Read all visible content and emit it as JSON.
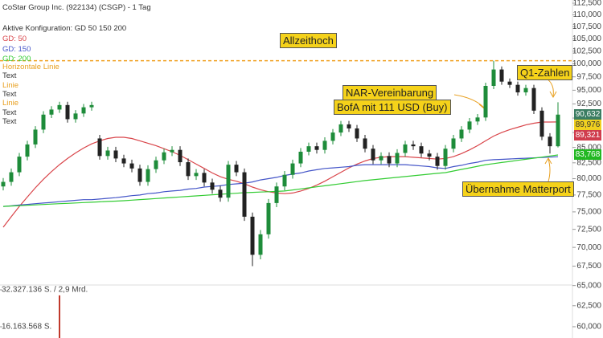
{
  "chart_data": {
    "type": "candlestick",
    "title": "CoStar Group Inc. (922134) (CSGP) - 1 Tag",
    "subtitle": "Aktive Konfiguration: GD 50 150 200",
    "log_scale": true,
    "ylim": [
      58700,
      113200
    ],
    "yticks": [
      {
        "value": 60000,
        "label": "60,000"
      },
      {
        "value": 62500,
        "label": "62,500"
      },
      {
        "value": 65000,
        "label": "65,000"
      },
      {
        "value": 67500,
        "label": "67,500"
      },
      {
        "value": 70000,
        "label": "70,000"
      },
      {
        "value": 72500,
        "label": "72,500"
      },
      {
        "value": 75000,
        "label": "75,000"
      },
      {
        "value": 77500,
        "label": "77,500"
      },
      {
        "value": 80000,
        "label": "80,000"
      },
      {
        "value": 82500,
        "label": "82,500"
      },
      {
        "value": 85000,
        "label": "85,000"
      },
      {
        "value": 87500,
        "label": "87,500"
      },
      {
        "value": 90000,
        "label": "90,000"
      },
      {
        "value": 92500,
        "label": "92,500"
      },
      {
        "value": 95000,
        "label": "95,000"
      },
      {
        "value": 97500,
        "label": "97,500"
      },
      {
        "value": 100000,
        "label": "100,000"
      },
      {
        "value": 102500,
        "label": "102,500"
      },
      {
        "value": 105000,
        "label": "105,000"
      },
      {
        "value": 107500,
        "label": "107,500"
      },
      {
        "value": 110000,
        "label": "110,000"
      },
      {
        "value": 112500,
        "label": "112,500"
      }
    ],
    "up_color": "#1e8c3a",
    "down_color": "#222222",
    "ohlc": [
      [
        78800,
        80100,
        78200,
        79500
      ],
      [
        79500,
        81600,
        78900,
        81000
      ],
      [
        81000,
        84100,
        80400,
        83500
      ],
      [
        83500,
        86100,
        82900,
        85500
      ],
      [
        85500,
        88600,
        84900,
        88000
      ],
      [
        88000,
        91200,
        87400,
        90600
      ],
      [
        90600,
        92100,
        90000,
        91500
      ],
      [
        91500,
        92900,
        90900,
        92300
      ],
      [
        92300,
        92900,
        89200,
        89800
      ],
      [
        89800,
        91400,
        89200,
        90800
      ],
      [
        90800,
        92500,
        90200,
        91900
      ],
      [
        91900,
        92900,
        91300,
        92300
      ],
      [
        86500,
        87100,
        83000,
        83600
      ],
      [
        83600,
        85100,
        83000,
        84500
      ],
      [
        84500,
        85100,
        82600,
        83200
      ],
      [
        83200,
        83800,
        81800,
        82400
      ],
      [
        82400,
        83000,
        81000,
        81600
      ],
      [
        81600,
        82200,
        78900,
        79500
      ],
      [
        79500,
        82100,
        78900,
        81500
      ],
      [
        81500,
        83500,
        80900,
        82900
      ],
      [
        82900,
        84800,
        82300,
        84200
      ],
      [
        84200,
        85200,
        83600,
        84600
      ],
      [
        84600,
        85200,
        82000,
        82600
      ],
      [
        82600,
        83200,
        79800,
        80400
      ],
      [
        80400,
        81500,
        79800,
        80900
      ],
      [
        80900,
        81500,
        78800,
        79400
      ],
      [
        79400,
        80000,
        77700,
        78300
      ],
      [
        78300,
        78900,
        76500,
        77100
      ],
      [
        77100,
        82800,
        76500,
        82200
      ],
      [
        82200,
        82800,
        80400,
        81000
      ],
      [
        81000,
        81600,
        73700,
        74300
      ],
      [
        74300,
        74900,
        67500,
        69000
      ],
      [
        69000,
        72400,
        68400,
        71800
      ],
      [
        71800,
        76900,
        71200,
        76300
      ],
      [
        76300,
        79400,
        75700,
        78800
      ],
      [
        78800,
        81200,
        78200,
        80600
      ],
      [
        80600,
        83000,
        80000,
        82400
      ],
      [
        82400,
        84900,
        81800,
        84300
      ],
      [
        84300,
        85800,
        83700,
        85200
      ],
      [
        85200,
        85800,
        84000,
        84600
      ],
      [
        84600,
        86700,
        84000,
        86100
      ],
      [
        86100,
        88100,
        85500,
        87500
      ],
      [
        87500,
        89500,
        86900,
        88900
      ],
      [
        88900,
        89500,
        87600,
        88200
      ],
      [
        88200,
        88800,
        85900,
        86500
      ],
      [
        86500,
        87100,
        84200,
        84800
      ],
      [
        84800,
        85400,
        82300,
        82900
      ],
      [
        82900,
        84200,
        82300,
        83600
      ],
      [
        83600,
        84200,
        81800,
        82400
      ],
      [
        82400,
        84700,
        81800,
        84100
      ],
      [
        84100,
        86100,
        83500,
        85500
      ],
      [
        85500,
        86100,
        84600,
        85200
      ],
      [
        85200,
        85800,
        83400,
        84000
      ],
      [
        84000,
        84600,
        82900,
        83500
      ],
      [
        83500,
        84100,
        81400,
        82000
      ],
      [
        82000,
        85400,
        81400,
        84800
      ],
      [
        84800,
        87100,
        84200,
        86500
      ],
      [
        86500,
        88600,
        85900,
        88000
      ],
      [
        88000,
        90000,
        87400,
        89400
      ],
      [
        89400,
        90700,
        88800,
        90100
      ],
      [
        90100,
        96400,
        89500,
        95800
      ],
      [
        95800,
        100600,
        95200,
        98900
      ],
      [
        98900,
        99500,
        96000,
        96600
      ],
      [
        96600,
        97200,
        95400,
        96000
      ],
      [
        96000,
        96600,
        94000,
        94600
      ],
      [
        94600,
        96000,
        94000,
        95400
      ],
      [
        95400,
        96000,
        90700,
        91300
      ],
      [
        91300,
        91900,
        86200,
        86800
      ],
      [
        86800,
        87400,
        84000,
        85200
      ],
      [
        85200,
        92800,
        85000,
        90600
      ]
    ],
    "series": [
      {
        "name": "GD: 50",
        "color": "#d9454a",
        "values": [
          72800,
          74300,
          75800,
          77200,
          78600,
          79900,
          81100,
          82200,
          83200,
          84100,
          84900,
          85600,
          86100,
          86500,
          86700,
          86700,
          86500,
          86100,
          85700,
          85300,
          84800,
          84300,
          83700,
          83000,
          82300,
          81600,
          80900,
          80300,
          79900,
          79600,
          79200,
          78700,
          78300,
          78000,
          77800,
          77700,
          77800,
          78100,
          78500,
          79000,
          79600,
          80300,
          81000,
          81700,
          82300,
          82800,
          83200,
          83400,
          83500,
          83500,
          83500,
          83400,
          83300,
          83200,
          83100,
          83200,
          83500,
          84000,
          84600,
          85300,
          86100,
          86900,
          87500,
          88000,
          88400,
          88800,
          89100,
          89300,
          89300,
          89321
        ]
      },
      {
        "name": "GD: 150",
        "color": "#4455c8",
        "values": [
          75800,
          75900,
          76000,
          76100,
          76200,
          76300,
          76400,
          76500,
          76600,
          76700,
          76800,
          76800,
          76900,
          77000,
          77100,
          77250,
          77400,
          77500,
          77700,
          77800,
          78000,
          78100,
          78200,
          78400,
          78500,
          78700,
          78800,
          78900,
          79100,
          79200,
          79300,
          79500,
          79800,
          80000,
          80200,
          80500,
          80700,
          80900,
          81200,
          81400,
          81600,
          81700,
          81800,
          81900,
          82100,
          82200,
          82200,
          82200,
          82200,
          82200,
          82200,
          82100,
          82000,
          81900,
          81700,
          81600,
          81900,
          82100,
          82400,
          82600,
          82900,
          83000,
          83060,
          83120,
          83180,
          83240,
          83300,
          83360,
          83420,
          83480
        ]
      },
      {
        "name": "GD: 200",
        "color": "#33cc33",
        "values": [
          75800,
          75860,
          75910,
          75970,
          76030,
          76080,
          76140,
          76200,
          76250,
          76310,
          76370,
          76420,
          76480,
          76540,
          76590,
          76650,
          76730,
          76810,
          76890,
          76970,
          77050,
          77130,
          77210,
          77290,
          77370,
          77450,
          77530,
          77610,
          77690,
          77770,
          77850,
          77900,
          77950,
          78000,
          78050,
          78100,
          78260,
          78420,
          78580,
          78740,
          78900,
          79060,
          79220,
          79380,
          79540,
          79700,
          79830,
          79950,
          80080,
          80200,
          80330,
          80450,
          80580,
          80700,
          80830,
          80950,
          81200,
          81450,
          81700,
          81950,
          82200,
          82370,
          82550,
          82720,
          82900,
          83070,
          83250,
          83420,
          83600,
          83768
        ]
      }
    ],
    "tools": [
      {
        "name": "Horizontale Linie",
        "color": "#e8a020"
      },
      {
        "name": "Text",
        "color": "#333333"
      },
      {
        "name": "Linie",
        "color": "#e8a020"
      },
      {
        "name": "Text",
        "color": "#333333"
      },
      {
        "name": "Linie",
        "color": "#e8a020"
      },
      {
        "name": "Text",
        "color": "#333333"
      },
      {
        "name": "Text",
        "color": "#333333"
      }
    ],
    "hline": {
      "value": 100600,
      "color": "#f0a020"
    },
    "annotations": [
      "Allzeithoch",
      "NAR-Vereinbarung",
      "BofA mit 111 USD (Buy)",
      "Q1-Zahlen",
      "Übernahme Matterport"
    ],
    "price_tags": [
      {
        "value": 90632,
        "label": "90,632",
        "color": "#3b7d62"
      },
      {
        "value": 89976,
        "label": "89,976",
        "color": "#f0d020"
      },
      {
        "value": 89321,
        "label": "89,321",
        "color": "#d03c4c"
      },
      {
        "value": 83768,
        "label": "83,768",
        "color": "#22b822"
      }
    ],
    "volume": {
      "color": "#c0392b",
      "values": [
        null,
        null,
        null,
        null,
        null,
        null,
        null,
        29900000,
        null,
        null,
        null,
        null,
        null,
        null,
        null,
        null,
        null,
        null,
        null,
        null,
        null,
        null,
        null,
        null,
        null,
        null,
        null,
        null,
        null,
        null,
        null,
        null,
        null,
        null,
        null,
        null,
        null,
        null,
        null,
        null,
        null,
        null,
        null,
        null,
        null,
        null,
        null,
        null,
        null,
        null,
        null,
        null,
        null,
        null,
        null,
        null,
        null,
        null,
        null,
        null,
        null,
        null,
        null,
        null,
        null,
        null,
        null,
        null,
        null,
        null
      ]
    },
    "volume_ylim": [
      11240000,
      34430000
    ],
    "volume_ticks": [
      {
        "value": 32327136,
        "label": "32.327.136 S. / 2,9 Mrd."
      },
      {
        "value": 16163568,
        "label": "16.163.568 S."
      }
    ]
  }
}
